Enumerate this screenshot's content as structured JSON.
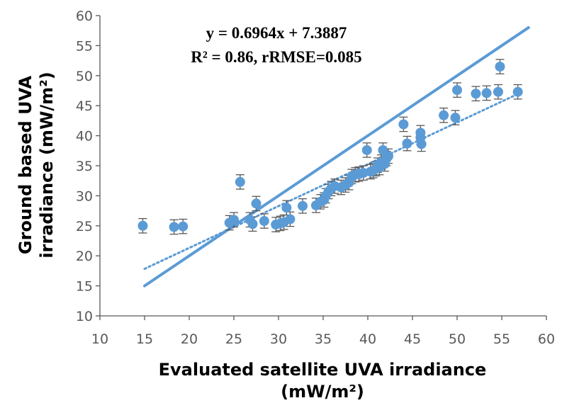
{
  "chart_data": {
    "type": "scatter",
    "title": "",
    "xlabel_line1": "Evaluated satellite UVA irradiance",
    "xlabel_line2": "(mW/m²)",
    "ylabel_line1": "Ground based UVA",
    "ylabel_line2": "irradiance (mW/m²)",
    "xlim": [
      10,
      60
    ],
    "ylim": [
      10,
      60
    ],
    "xticks": [
      10,
      15,
      20,
      25,
      30,
      35,
      40,
      45,
      50,
      55,
      60
    ],
    "yticks": [
      10,
      15,
      20,
      25,
      30,
      35,
      40,
      45,
      50,
      55,
      60
    ],
    "grid": false,
    "legend": "none",
    "annotation_line1": "y = 0.6964x + 7.3887",
    "annotation_line2": "R² = 0.86, rRMSE=0.085",
    "colors": {
      "points": "#5b9bd5",
      "error_bars": "#595959",
      "lines": "#5b9bd5",
      "axes": "#595959"
    },
    "error_bar": 1.2,
    "identity_line": {
      "x": [
        15,
        58
      ],
      "y": [
        15,
        58
      ]
    },
    "trendline": {
      "slope": 0.6964,
      "intercept": 7.3887,
      "x_range": [
        15,
        57
      ],
      "style": "dotted"
    },
    "points": [
      [
        14.8,
        25.0
      ],
      [
        18.3,
        24.8
      ],
      [
        19.3,
        24.9
      ],
      [
        24.5,
        25.5
      ],
      [
        25.0,
        26.0
      ],
      [
        25.7,
        32.3
      ],
      [
        26.8,
        26.0
      ],
      [
        27.1,
        25.3
      ],
      [
        27.5,
        28.7
      ],
      [
        28.4,
        25.8
      ],
      [
        29.7,
        25.2
      ],
      [
        30.2,
        25.4
      ],
      [
        30.6,
        25.6
      ],
      [
        30.9,
        28.0
      ],
      [
        31.3,
        26.1
      ],
      [
        32.7,
        28.3
      ],
      [
        34.2,
        28.4
      ],
      [
        34.7,
        29.0
      ],
      [
        35.1,
        29.3
      ],
      [
        35.3,
        30.0
      ],
      [
        35.6,
        30.7
      ],
      [
        35.9,
        31.2
      ],
      [
        36.3,
        31.6
      ],
      [
        37.0,
        31.4
      ],
      [
        37.5,
        31.8
      ],
      [
        37.9,
        32.2
      ],
      [
        38.2,
        33.2
      ],
      [
        38.6,
        33.5
      ],
      [
        39.0,
        33.6
      ],
      [
        39.5,
        33.8
      ],
      [
        39.9,
        37.6
      ],
      [
        40.3,
        34.0
      ],
      [
        40.6,
        34.2
      ],
      [
        40.9,
        34.5
      ],
      [
        41.1,
        35.1
      ],
      [
        41.3,
        34.7
      ],
      [
        41.5,
        35.6
      ],
      [
        41.7,
        37.6
      ],
      [
        41.9,
        35.3
      ],
      [
        42.1,
        36.2
      ],
      [
        42.3,
        36.6
      ],
      [
        44.0,
        41.9
      ],
      [
        44.4,
        38.7
      ],
      [
        45.9,
        40.5
      ],
      [
        45.9,
        39.7
      ],
      [
        46.0,
        38.6
      ],
      [
        48.5,
        43.4
      ],
      [
        49.8,
        43.0
      ],
      [
        50.0,
        47.6
      ],
      [
        52.1,
        47.0
      ],
      [
        53.3,
        47.1
      ],
      [
        54.6,
        47.3
      ],
      [
        54.8,
        51.5
      ],
      [
        56.8,
        47.3
      ]
    ]
  }
}
